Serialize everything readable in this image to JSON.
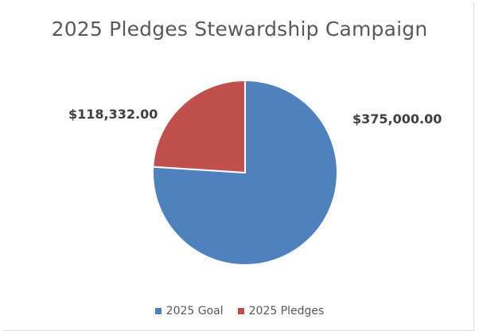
{
  "chart_data": {
    "type": "pie",
    "title": "2025 Pledges Stewardship Campaign",
    "series": [
      {
        "name": "2025 Goal",
        "value": 375000.0,
        "label": "$375,000.00",
        "color": "#4f81bd"
      },
      {
        "name": "2025 Pledges",
        "value": 118332.0,
        "label": "$118,332.00",
        "color": "#c0504d"
      }
    ],
    "legend_position": "bottom",
    "start_angle": "12 o'clock, clockwise"
  }
}
